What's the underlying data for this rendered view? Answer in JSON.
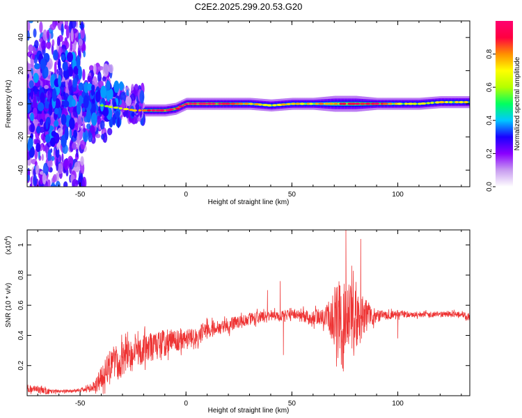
{
  "figure": {
    "title": "C2E2.2025.299.20.53.G20"
  },
  "chart_data": [
    {
      "type": "heatmap",
      "xlabel": "Height of straight line (km)",
      "ylabel": "Frequency (Hz)",
      "xlim": [
        -75,
        134
      ],
      "ylim": [
        -50,
        50
      ],
      "xticks": [
        -50,
        0,
        50,
        100
      ],
      "yticks": [
        -40,
        -20,
        0,
        20,
        40
      ],
      "grid": false,
      "colorbar": {
        "label": "Normalized spectral amplitude",
        "range": [
          0,
          1
        ],
        "ticks": [
          0.0,
          0.2,
          0.4,
          0.6,
          0.8
        ],
        "tick_labels": [
          "0.0",
          "0.2",
          "0.4",
          "0.6",
          "0.8"
        ],
        "colormap": [
          "#ffffff",
          "#c89cf0",
          "#8a00ff",
          "#1a00ff",
          "#00c8ff",
          "#00ff60",
          "#b4ff00",
          "#ffff00",
          "#ff9000",
          "#ff0040",
          "#ff0070"
        ]
      },
      "ridge": {
        "x": [
          -75,
          -60,
          -50,
          -45,
          -40,
          -35,
          -30,
          -25,
          -20,
          -15,
          -10,
          -5,
          0,
          10,
          20,
          30,
          40,
          50,
          60,
          70,
          80,
          90,
          100,
          110,
          120,
          134
        ],
        "frequency": [
          3,
          1,
          0,
          -1,
          -1,
          -2,
          -3,
          -4,
          -4,
          -4,
          -4,
          -3,
          0,
          0,
          0,
          0,
          -1,
          0,
          0,
          0,
          0,
          0,
          0,
          0,
          1,
          1
        ],
        "amplitude": [
          0.35,
          0.4,
          0.35,
          0.35,
          0.4,
          0.45,
          0.5,
          0.6,
          0.7,
          0.8,
          0.85,
          0.8,
          0.85,
          0.9,
          0.75,
          0.6,
          0.55,
          0.6,
          0.6,
          0.7,
          0.75,
          0.8,
          0.55,
          0.5,
          0.55,
          0.55
        ],
        "bandwidth_hz": [
          18,
          14,
          10,
          8,
          6,
          5,
          4,
          3.5,
          3,
          3,
          3,
          3,
          3,
          3,
          3,
          3,
          3,
          3,
          3,
          4,
          4,
          3,
          3,
          3,
          3,
          3
        ]
      }
    },
    {
      "type": "line",
      "xlabel": "Height of straight line (km)",
      "ylabel": "SNR (10 * v/v)",
      "y_scale_label": "(x10",
      "y_scale_exponent": "4",
      "y_scale_suffix": ")",
      "xlim": [
        -75,
        134
      ],
      "ylim": [
        0,
        1.1
      ],
      "y_multiplier": 10000,
      "xticks": [
        -50,
        0,
        50,
        100
      ],
      "yticks": [
        0.2,
        0.4,
        0.6,
        0.8,
        1
      ],
      "grid": false,
      "color": "#ee3333",
      "series": [
        {
          "x": [
            -75,
            -70,
            -65,
            -60,
            -55,
            -50,
            -45,
            -42,
            -40,
            -38,
            -35,
            -30,
            -25,
            -20,
            -15,
            -10,
            -5,
            0,
            5,
            10,
            15,
            20,
            25,
            30,
            35,
            40,
            45,
            50,
            55,
            60,
            65,
            68,
            70,
            72,
            75,
            78,
            80,
            83,
            85,
            88,
            90,
            95,
            100,
            105,
            110,
            115,
            120,
            125,
            130,
            134
          ],
          "mean": [
            0.05,
            0.04,
            0.03,
            0.03,
            0.03,
            0.04,
            0.05,
            0.08,
            0.12,
            0.16,
            0.2,
            0.24,
            0.27,
            0.3,
            0.33,
            0.35,
            0.36,
            0.37,
            0.4,
            0.43,
            0.45,
            0.47,
            0.49,
            0.51,
            0.52,
            0.53,
            0.53,
            0.53,
            0.53,
            0.52,
            0.52,
            0.52,
            0.52,
            0.52,
            0.52,
            0.52,
            0.52,
            0.52,
            0.52,
            0.53,
            0.53,
            0.53,
            0.54,
            0.54,
            0.54,
            0.54,
            0.54,
            0.54,
            0.54,
            0.52
          ],
          "noise": [
            0.03,
            0.02,
            0.02,
            0.01,
            0.01,
            0.01,
            0.02,
            0.05,
            0.08,
            0.1,
            0.12,
            0.12,
            0.11,
            0.1,
            0.09,
            0.09,
            0.08,
            0.07,
            0.06,
            0.06,
            0.05,
            0.05,
            0.04,
            0.04,
            0.04,
            0.04,
            0.04,
            0.04,
            0.04,
            0.05,
            0.06,
            0.12,
            0.2,
            0.22,
            0.25,
            0.22,
            0.2,
            0.15,
            0.12,
            0.06,
            0.04,
            0.03,
            0.03,
            0.02,
            0.02,
            0.02,
            0.02,
            0.02,
            0.02,
            0.02
          ]
        }
      ],
      "peaks": [
        {
          "x": 75.5,
          "y": 1.1
        },
        {
          "x": 82.5,
          "y": 1.04
        },
        {
          "x": 44.5,
          "y": 0.76
        },
        {
          "x": 38.5,
          "y": 0.7
        },
        {
          "x": 100,
          "y": 0.45
        }
      ],
      "dips": [
        {
          "x": 46,
          "y": 0.27
        },
        {
          "x": 74,
          "y": 0.18
        },
        {
          "x": 100,
          "y": 0.38
        }
      ]
    }
  ]
}
